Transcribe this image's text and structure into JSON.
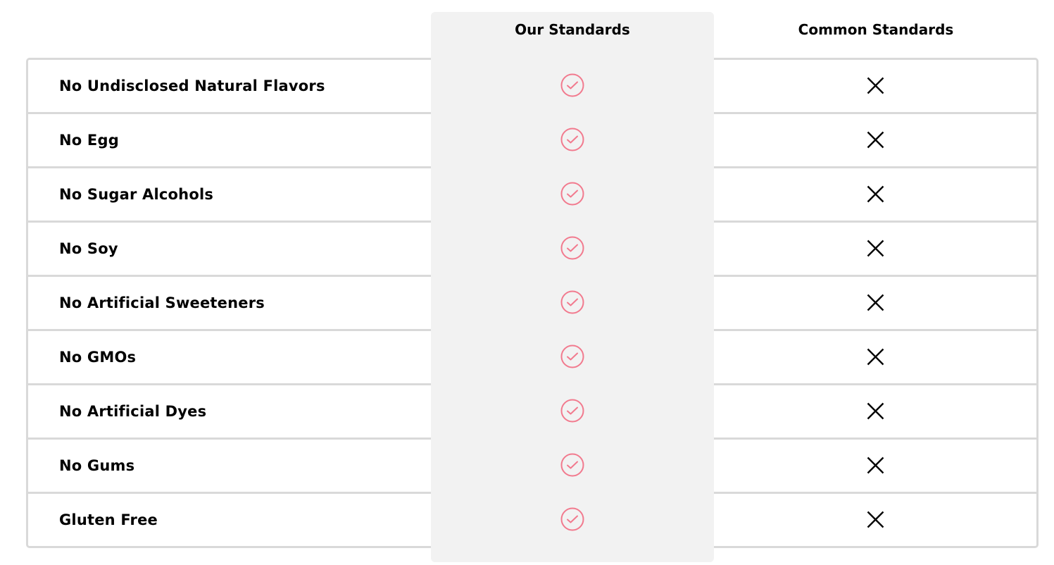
{
  "header": {
    "our": "Our Standards",
    "common": "Common Standards"
  },
  "colors": {
    "check": "#f27a8e",
    "column_bg": "#f2f2f2",
    "border": "#d9d9d9"
  },
  "rows": [
    {
      "label": "No Undisclosed Natural Flavors",
      "ours": "check-icon",
      "common": "x-icon"
    },
    {
      "label": "No Egg",
      "ours": "check-icon",
      "common": "x-icon"
    },
    {
      "label": "No Sugar Alcohols",
      "ours": "check-icon",
      "common": "x-icon"
    },
    {
      "label": "No Soy",
      "ours": "check-icon",
      "common": "x-icon"
    },
    {
      "label": "No Artificial Sweeteners",
      "ours": "check-icon",
      "common": "x-icon"
    },
    {
      "label": "No GMOs",
      "ours": "check-icon",
      "common": "x-icon"
    },
    {
      "label": "No Artificial Dyes",
      "ours": "check-icon",
      "common": "x-icon"
    },
    {
      "label": "No Gums",
      "ours": "check-icon",
      "common": "x-icon"
    },
    {
      "label": "Gluten Free",
      "ours": "check-icon",
      "common": "x-icon"
    }
  ]
}
